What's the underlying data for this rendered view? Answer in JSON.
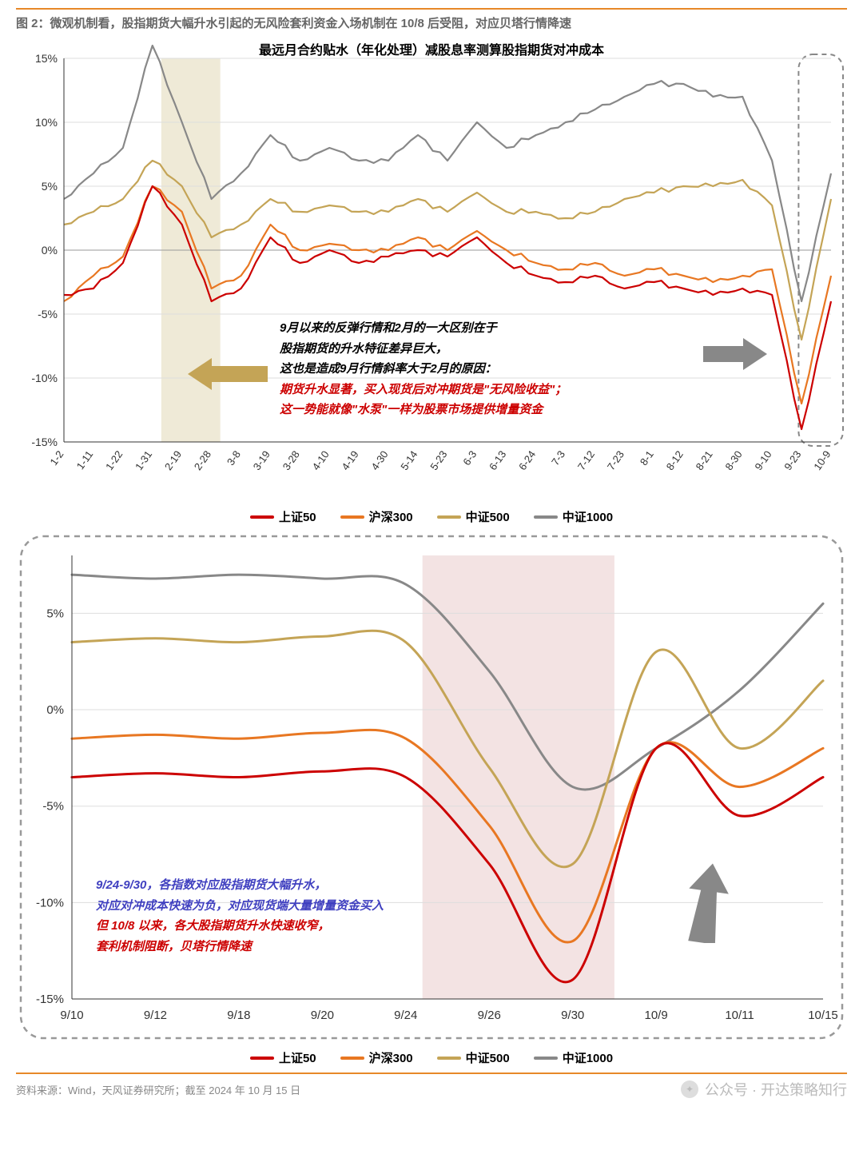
{
  "figureCaption": "图 2：微观机制看，股指期货大幅升水引起的无风险套利资金入场机制在 10/8 后受阻，对应贝塔行情降速",
  "source": "资料来源：Wind，天风证券研究所；截至 2024 年 10 月 15 日",
  "watermark": "公众号 · 开达策略知行",
  "chart1": {
    "title": "最远月合约贴水（年化处理）减股息率测算股指期货对冲成本",
    "ylim": [
      -15,
      15
    ],
    "ytick_step": 5,
    "ytick_labels": [
      "-15%",
      "-10%",
      "-5%",
      "0%",
      "5%",
      "10%",
      "15%"
    ],
    "xlabels": [
      "1-2",
      "1-11",
      "1-22",
      "1-31",
      "2-19",
      "2-28",
      "3-8",
      "3-19",
      "3-28",
      "4-10",
      "4-19",
      "4-30",
      "5-14",
      "5-23",
      "6-3",
      "6-13",
      "6-24",
      "7-3",
      "7-12",
      "7-23",
      "8-1",
      "8-12",
      "8-21",
      "8-30",
      "9-10",
      "9-23",
      "10-9"
    ],
    "highlight1_x": [
      3.3,
      5.3
    ],
    "highlight1_color": "#e0d5b0",
    "highlight2_x": [
      24.9,
      26
    ],
    "highlight2_color": "none",
    "series": {
      "sz50": {
        "label": "上证50",
        "color": "#cc0000",
        "data": [
          -3.5,
          -3,
          -1,
          5,
          2,
          -4,
          -3,
          1,
          -1,
          0,
          -1,
          -0.5,
          0,
          -0.5,
          1,
          -1,
          -2,
          -2.5,
          -2,
          -3,
          -2.5,
          -3,
          -3.5,
          -3,
          -3.5,
          -14,
          -4
        ]
      },
      "hs300": {
        "label": "沪深300",
        "color": "#e87722",
        "data": [
          -4,
          -2,
          -0.5,
          5,
          3,
          -3,
          -2,
          2,
          0,
          0.5,
          0,
          0,
          1,
          0,
          1.5,
          0,
          -1,
          -1.5,
          -1,
          -2,
          -1.5,
          -2,
          -2.5,
          -2,
          -1.5,
          -12,
          -2
        ]
      },
      "zz500": {
        "label": "中证500",
        "color": "#c4a456",
        "data": [
          2,
          3,
          4,
          7,
          5,
          1,
          2,
          4,
          3,
          3.5,
          3,
          3,
          4,
          3,
          4.5,
          3,
          3,
          2.5,
          3,
          4,
          4.5,
          5,
          5,
          5.5,
          3.5,
          -7,
          4
        ]
      },
      "zz1000": {
        "label": "中证1000",
        "color": "#888888",
        "data": [
          4,
          6,
          8,
          16,
          10,
          4,
          6,
          9,
          7,
          8,
          7,
          7,
          9,
          7,
          10,
          8,
          9,
          10,
          11,
          12,
          13,
          13,
          12,
          12,
          7,
          -4,
          6
        ]
      }
    },
    "annotation": {
      "black": [
        "9月以来的反弹行情和2月的一大区别在于",
        "股指期货的升水特征差异巨大，",
        "这也是造成9月行情斜率大于2月的原因："
      ],
      "red": [
        "期货升水显著，买入现货后对冲期货是\"无风险收益\"；",
        "这一势能就像\"水泵\"一样为股票市场提供增量资金"
      ]
    },
    "arrow1_color": "#c4a456",
    "arrow2_color": "#888888"
  },
  "chart2": {
    "ylim": [
      -15,
      8
    ],
    "yticks": [
      -15,
      -10,
      -5,
      0,
      5
    ],
    "ytick_labels": [
      "-15%",
      "-10%",
      "-5%",
      "0%",
      "5%"
    ],
    "xlabels": [
      "9/10",
      "9/12",
      "9/18",
      "9/20",
      "9/24",
      "9/26",
      "9/30",
      "10/9",
      "10/11",
      "10/15"
    ],
    "xpositions": [
      0,
      1,
      2,
      3,
      4,
      5,
      6,
      7,
      8,
      9
    ],
    "highlight_x": [
      4.2,
      6.5
    ],
    "highlight_color": "#e8c8c8",
    "series": {
      "sz50": {
        "label": "上证50",
        "color": "#cc0000",
        "data": [
          -3.5,
          -3.3,
          -3.5,
          -3.2,
          -3.5,
          -8,
          -14,
          -2,
          -5.5,
          -3.5
        ]
      },
      "hs300": {
        "label": "沪深300",
        "color": "#e87722",
        "data": [
          -1.5,
          -1.3,
          -1.5,
          -1.2,
          -1.5,
          -6,
          -12,
          -2,
          -4,
          -2
        ]
      },
      "zz500": {
        "label": "中证500",
        "color": "#c4a456",
        "data": [
          3.5,
          3.7,
          3.5,
          3.8,
          3.5,
          -3,
          -8,
          3,
          -2,
          1.5
        ]
      },
      "zz1000": {
        "label": "中证1000",
        "color": "#888888",
        "data": [
          7,
          6.8,
          7,
          6.8,
          6.5,
          2,
          -4,
          -2,
          1,
          5.5
        ]
      }
    },
    "annotation": {
      "blue": [
        "9/24-9/30，各指数对应股指期货大幅升水，",
        "对应对冲成本快速为负，对应现货端大量增量资金买入"
      ],
      "red": [
        "但 10/8 以来，各大股指期货升水快速收窄，",
        "套利机制阻断，贝塔行情降速"
      ]
    },
    "arrow_color": "#888888"
  },
  "legend": [
    {
      "label": "上证50",
      "color": "#cc0000"
    },
    {
      "label": "沪深300",
      "color": "#e87722"
    },
    {
      "label": "中证500",
      "color": "#c4a456"
    },
    {
      "label": "中证1000",
      "color": "#888888"
    }
  ]
}
